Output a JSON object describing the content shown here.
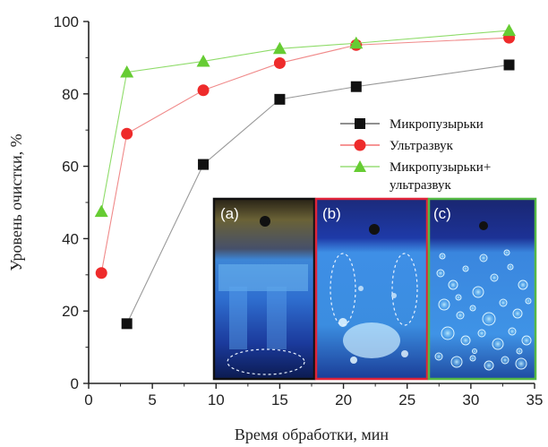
{
  "chart_data": {
    "type": "line",
    "xlabel": "Время обработки, мин",
    "ylabel": "Уровень очистки, %",
    "xlim": [
      0,
      35
    ],
    "ylim": [
      0,
      100
    ],
    "xticks": [
      0,
      5,
      10,
      15,
      20,
      25,
      30,
      35
    ],
    "yticks": [
      0,
      20,
      40,
      60,
      80,
      100
    ],
    "grid": false,
    "legend_position": "right",
    "series": [
      {
        "name": "Микропузырьки",
        "marker": "square",
        "color": "#111111",
        "line_color": "#9a9a9a",
        "x": [
          3,
          9,
          15,
          21,
          33
        ],
        "y": [
          16.5,
          60.5,
          78.5,
          82,
          88
        ]
      },
      {
        "name": "Ультразвук",
        "marker": "circle",
        "color": "#ee2b2b",
        "line_color": "#f08a8a",
        "x": [
          1,
          3,
          9,
          15,
          21,
          33
        ],
        "y": [
          30.5,
          69,
          81,
          88.5,
          93.5,
          95.5
        ]
      },
      {
        "name": "Микропузырьки+ ультразвук",
        "name_lines": [
          "Микропузырьки+",
          "ультразвук"
        ],
        "marker": "triangle",
        "color": "#66cc33",
        "line_color": "#8fdc6a",
        "x": [
          1,
          3,
          9,
          15,
          21,
          33
        ],
        "y": [
          47.5,
          86,
          89,
          92.5,
          94,
          97.5
        ]
      }
    ],
    "insets": [
      {
        "label": "(a)",
        "border_color": "#111111"
      },
      {
        "label": "(b)",
        "border_color": "#e0243a"
      },
      {
        "label": "(c)",
        "border_color": "#55b845"
      }
    ]
  }
}
